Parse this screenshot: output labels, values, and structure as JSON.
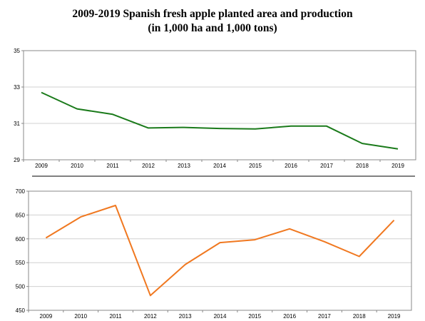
{
  "title": {
    "line1": "2009-2019 Spanish fresh apple planted area and production",
    "line2": "(in 1,000 ha and 1,000 tons)"
  },
  "chart_data": [
    {
      "type": "line",
      "categories": [
        "2009",
        "2010",
        "2011",
        "2012",
        "2013",
        "2014",
        "2015",
        "2016",
        "2017",
        "2018",
        "2019"
      ],
      "series": [
        {
          "values": [
            32.7,
            31.8,
            31.5,
            30.75,
            30.78,
            30.72,
            30.7,
            30.85,
            30.85,
            29.9,
            29.6
          ],
          "color": "#1a7a1a"
        }
      ],
      "ylim": [
        29,
        35
      ],
      "yticks": [
        29,
        31,
        33,
        35
      ],
      "grid": true,
      "xlabel": "",
      "ylabel": ""
    },
    {
      "type": "line",
      "categories": [
        "2009",
        "2010",
        "2011",
        "2012",
        "2013",
        "2014",
        "2015",
        "2016",
        "2017",
        "2018",
        "2019"
      ],
      "series": [
        {
          "values": [
            602,
            646,
            670,
            481,
            546,
            592,
            598,
            621,
            594,
            563,
            639
          ],
          "color": "#f07820"
        }
      ],
      "ylim": [
        450,
        700
      ],
      "yticks": [
        450,
        500,
        550,
        600,
        650,
        700
      ],
      "grid": true,
      "xlabel": "",
      "ylabel": ""
    }
  ]
}
